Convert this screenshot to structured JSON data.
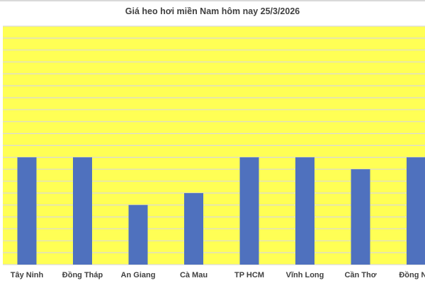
{
  "chart_data": {
    "type": "bar",
    "title": "Giá heo hơi miền Nam hôm nay 25/3/2026",
    "categories": [
      "Tây Ninh",
      "Đồng Tháp",
      "An Giang",
      "Cà Mau",
      "TP HCM",
      "Vĩnh Long",
      "Cần Thơ",
      "Đồng Nai"
    ],
    "values": [
      9,
      9,
      5,
      6,
      9,
      9,
      8,
      9
    ],
    "ylim": [
      0,
      20
    ],
    "grid": true,
    "xlabel": "",
    "ylabel": "",
    "colors": {
      "bar": "#4f71be",
      "plot_background": "#ffff55",
      "grid": "#d9d9d9"
    }
  }
}
